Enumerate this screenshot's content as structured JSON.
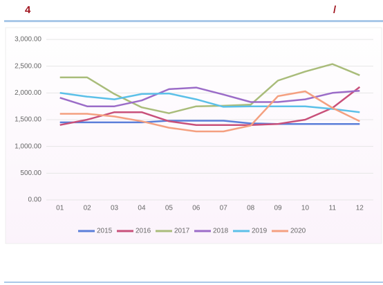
{
  "header": {
    "left": "4",
    "right": "/"
  },
  "chart_data": {
    "type": "line",
    "categories": [
      "01",
      "02",
      "03",
      "04",
      "05",
      "06",
      "07",
      "08",
      "09",
      "10",
      "11",
      "12"
    ],
    "ylim": [
      0,
      3000
    ],
    "yticks": [
      {
        "value": 0,
        "label": "0.00"
      },
      {
        "value": 500,
        "label": "500.00"
      },
      {
        "value": 1000,
        "label": "1,000.00"
      },
      {
        "value": 1500,
        "label": "1,500.00"
      },
      {
        "value": 2000,
        "label": "2,000.00"
      },
      {
        "value": 2500,
        "label": "2,500.00"
      },
      {
        "value": 3000,
        "label": "3,000.00"
      }
    ],
    "grid": true,
    "legend": "bottom",
    "series": [
      {
        "name": "2015",
        "color": "#5b7fd9",
        "values": [
          1450,
          1450,
          1450,
          1450,
          1480,
          1480,
          1480,
          1430,
          1420,
          1420,
          1420,
          1420
        ]
      },
      {
        "name": "2016",
        "color": "#c8507a",
        "values": [
          1400,
          1500,
          1640,
          1640,
          1470,
          1400,
          1400,
          1400,
          1420,
          1500,
          1720,
          2110
        ]
      },
      {
        "name": "2017",
        "color": "#a9bc7a",
        "values": [
          2290,
          2290,
          1980,
          1730,
          1620,
          1750,
          1760,
          1780,
          2230,
          2400,
          2540,
          2330
        ]
      },
      {
        "name": "2018",
        "color": "#9b6cc8",
        "values": [
          1910,
          1750,
          1750,
          1860,
          2070,
          2100,
          1970,
          1830,
          1830,
          1880,
          2000,
          2040
        ]
      },
      {
        "name": "2019",
        "color": "#5bc0e8",
        "values": [
          2000,
          1930,
          1880,
          1980,
          1990,
          1880,
          1740,
          1750,
          1750,
          1750,
          1700,
          1640
        ]
      },
      {
        "name": "2020",
        "color": "#f4a080",
        "values": [
          1610,
          1610,
          1560,
          1470,
          1350,
          1280,
          1280,
          1390,
          1940,
          2030,
          1720,
          1470
        ]
      }
    ]
  }
}
